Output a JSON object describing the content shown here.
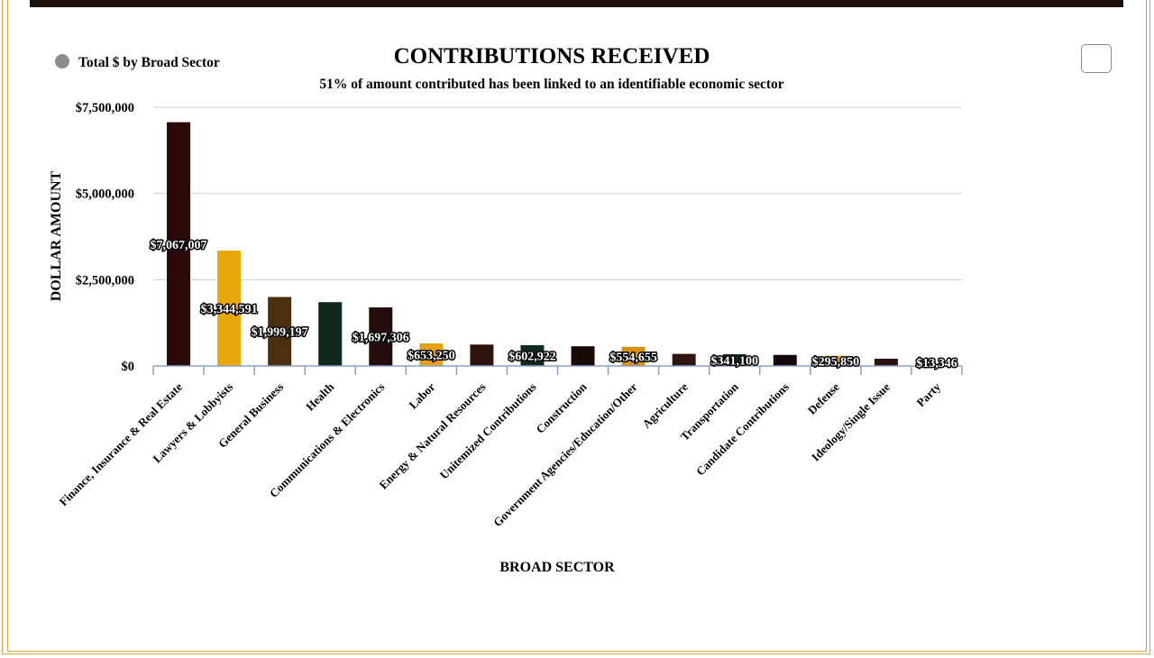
{
  "chart_data": {
    "type": "bar",
    "title": "CONTRIBUTIONS RECEIVED",
    "subtitle": "51% of amount contributed has been linked to an identifiable economic sector",
    "legend": {
      "label": "Total $ by Broad Sector",
      "color": "#8c8c8c",
      "placement": "top-left"
    },
    "xlabel": "BROAD SECTOR",
    "ylabel": "DOLLAR AMOUNT",
    "ylim": [
      0,
      7500000
    ],
    "yticks": [
      {
        "value": 0,
        "label": "$0"
      },
      {
        "value": 2500000,
        "label": "$2,500,000"
      },
      {
        "value": 5000000,
        "label": "$5,000,000"
      },
      {
        "value": 7500000,
        "label": "$7,500,000"
      }
    ],
    "grid": true,
    "categories": [
      "Finance, Insurance & Real Estate",
      "Lawyers & Lobbyists",
      "General Business",
      "Health",
      "Communications & Electronics",
      "Labor",
      "Energy & Natural Resources",
      "Unitemized Contributions",
      "Construction",
      "Government Agencies/Education/Other",
      "Agriculture",
      "Transportation",
      "Candidate Contributions",
      "Defense",
      "Ideology/Single Issue",
      "Party"
    ],
    "values": [
      7067007,
      3344591,
      1999197,
      1850000,
      1697306,
      653250,
      620000,
      602922,
      570000,
      554655,
      350000,
      341100,
      320000,
      295850,
      210000,
      13346
    ],
    "labels": [
      "$7,067,007",
      "$3,344,591",
      "$1,999,197",
      "",
      "$1,697,306",
      "$653,250",
      "",
      "$602,922",
      "",
      "$554,655",
      "",
      "$341,100",
      "",
      "$295,850",
      "",
      "$13,346"
    ],
    "colors": [
      "#2a0a08",
      "#e8a80c",
      "#4a3010",
      "#0e2a1c",
      "#240d0c",
      "#e8a018",
      "#2e120c",
      "#102a1c",
      "#1a0a08",
      "#d89010",
      "#2e140c",
      "#12261a",
      "#150808",
      "#d8a018",
      "#2e120c",
      "#0e2618"
    ]
  }
}
